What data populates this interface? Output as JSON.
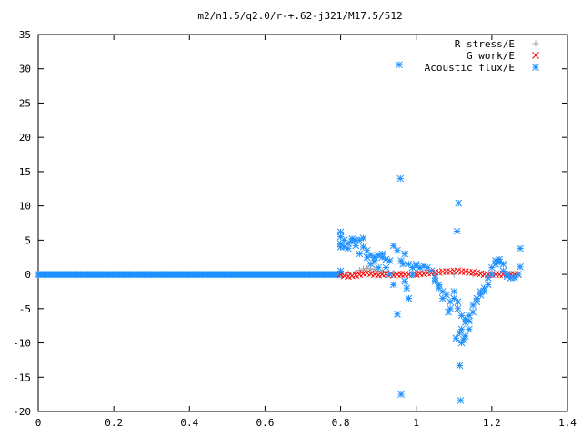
{
  "chart_data": {
    "type": "scatter",
    "title": "m2/n1.5/q2.0/r-+.62-j321/M17.5/512",
    "xlabel": "",
    "ylabel": "",
    "xlim": [
      0,
      1.4
    ],
    "ylim": [
      -20,
      35
    ],
    "x_ticks": [
      "0",
      "0.2",
      "0.4",
      "0.6",
      "0.8",
      "1",
      "1.2",
      "1.4"
    ],
    "y_ticks": [
      "35",
      "30",
      "25",
      "20",
      "15",
      "10",
      "5",
      "0",
      "-5",
      "-10",
      "-15",
      "-20"
    ],
    "grid": false,
    "legend_position": "top-right",
    "series": [
      {
        "name": "R stress/E",
        "marker": "plus",
        "color": "#a0a0a0",
        "points": [
          [
            0.8,
            0.0
          ],
          [
            0.82,
            0.2
          ],
          [
            0.84,
            0.4
          ],
          [
            0.85,
            0.6
          ],
          [
            0.86,
            0.8
          ],
          [
            0.87,
            0.9
          ],
          [
            0.88,
            0.8
          ],
          [
            0.89,
            0.7
          ],
          [
            0.9,
            0.5
          ],
          [
            0.91,
            0.4
          ],
          [
            0.92,
            0.3
          ],
          [
            0.94,
            0.2
          ],
          [
            0.96,
            0.1
          ],
          [
            1.0,
            0.0
          ],
          [
            1.05,
            0.0
          ],
          [
            1.1,
            0.0
          ],
          [
            1.15,
            0.0
          ],
          [
            1.2,
            0.0
          ],
          [
            1.25,
            0.0
          ]
        ]
      },
      {
        "name": "G work/E",
        "marker": "cross",
        "color": "#ff0000",
        "points": [
          [
            0.8,
            0.0
          ],
          [
            0.81,
            -0.2
          ],
          [
            0.82,
            -0.3
          ],
          [
            0.83,
            -0.2
          ],
          [
            0.84,
            -0.1
          ],
          [
            0.85,
            0.0
          ],
          [
            0.86,
            0.1
          ],
          [
            0.87,
            0.2
          ],
          [
            0.88,
            0.1
          ],
          [
            0.89,
            0.0
          ],
          [
            0.9,
            -0.1
          ],
          [
            0.91,
            0.0
          ],
          [
            0.92,
            0.1
          ],
          [
            0.93,
            0.0
          ],
          [
            0.94,
            -0.1
          ],
          [
            0.95,
            0.0
          ],
          [
            0.96,
            0.0
          ],
          [
            0.97,
            0.0
          ],
          [
            0.98,
            0.0
          ],
          [
            0.99,
            0.0
          ],
          [
            1.0,
            0.0
          ],
          [
            1.01,
            0.1
          ],
          [
            1.02,
            0.1
          ],
          [
            1.03,
            0.2
          ],
          [
            1.04,
            0.2
          ],
          [
            1.05,
            0.3
          ],
          [
            1.06,
            0.3
          ],
          [
            1.07,
            0.4
          ],
          [
            1.08,
            0.4
          ],
          [
            1.09,
            0.4
          ],
          [
            1.1,
            0.5
          ],
          [
            1.11,
            0.5
          ],
          [
            1.12,
            0.4
          ],
          [
            1.13,
            0.4
          ],
          [
            1.14,
            0.3
          ],
          [
            1.15,
            0.3
          ],
          [
            1.16,
            0.2
          ],
          [
            1.17,
            0.1
          ],
          [
            1.18,
            0.0
          ],
          [
            1.19,
            0.0
          ],
          [
            1.2,
            0.0
          ],
          [
            1.21,
            0.0
          ],
          [
            1.22,
            0.0
          ],
          [
            1.23,
            0.0
          ],
          [
            1.24,
            0.0
          ],
          [
            1.25,
            0.0
          ],
          [
            1.26,
            0.0
          ],
          [
            1.27,
            0.0
          ]
        ]
      },
      {
        "name": "Acoustic flux/E",
        "marker": "star",
        "color": "#1e90ff",
        "points": [
          [
            0.8,
            6.2
          ],
          [
            0.8,
            5.5
          ],
          [
            0.8,
            4.5
          ],
          [
            0.8,
            4.0
          ],
          [
            0.8,
            0.5
          ],
          [
            0.81,
            4.0
          ],
          [
            0.81,
            5.0
          ],
          [
            0.82,
            4.5
          ],
          [
            0.82,
            3.8
          ],
          [
            0.83,
            5.2
          ],
          [
            0.83,
            4.8
          ],
          [
            0.84,
            5.0
          ],
          [
            0.84,
            4.2
          ],
          [
            0.85,
            5.0
          ],
          [
            0.85,
            3.0
          ],
          [
            0.86,
            4.0
          ],
          [
            0.86,
            5.3
          ],
          [
            0.87,
            3.5
          ],
          [
            0.87,
            2.5
          ],
          [
            0.88,
            2.8
          ],
          [
            0.88,
            1.5
          ],
          [
            0.89,
            2.0
          ],
          [
            0.89,
            2.5
          ],
          [
            0.9,
            2.8
          ],
          [
            0.9,
            1.0
          ],
          [
            0.91,
            2.5
          ],
          [
            0.91,
            3.0
          ],
          [
            0.92,
            2.2
          ],
          [
            0.92,
            1.0
          ],
          [
            0.93,
            2.0
          ],
          [
            0.93,
            0.0
          ],
          [
            0.94,
            -1.5
          ],
          [
            0.94,
            4.2
          ],
          [
            0.95,
            3.5
          ],
          [
            0.95,
            -5.8
          ],
          [
            0.955,
            30.6
          ],
          [
            0.958,
            14.0
          ],
          [
            0.96,
            -17.5
          ],
          [
            0.96,
            2.0
          ],
          [
            0.965,
            1.5
          ],
          [
            0.97,
            3.0
          ],
          [
            0.97,
            -1.0
          ],
          [
            0.975,
            -2.0
          ],
          [
            0.98,
            1.5
          ],
          [
            0.98,
            -3.5
          ],
          [
            0.99,
            0.0
          ],
          [
            0.99,
            1.0
          ],
          [
            1.0,
            1.2
          ],
          [
            1.0,
            1.5
          ],
          [
            1.01,
            1.0
          ],
          [
            1.02,
            1.2
          ],
          [
            1.03,
            1.0
          ],
          [
            1.04,
            0.5
          ],
          [
            1.05,
            -0.5
          ],
          [
            1.06,
            -1.5
          ],
          [
            1.07,
            -2.5
          ],
          [
            1.08,
            -3.0
          ],
          [
            1.09,
            -4.0
          ],
          [
            1.1,
            -2.5
          ],
          [
            1.1,
            -3.5
          ],
          [
            1.11,
            -4.0
          ],
          [
            1.11,
            -5.0
          ],
          [
            1.105,
            -9.3
          ],
          [
            1.108,
            6.3
          ],
          [
            1.112,
            10.4
          ],
          [
            1.115,
            -13.3
          ],
          [
            1.117,
            -18.4
          ],
          [
            1.12,
            -8.0
          ],
          [
            1.12,
            -6.0
          ],
          [
            1.13,
            -6.5
          ],
          [
            1.13,
            -7.0
          ],
          [
            1.14,
            -6.8
          ],
          [
            1.14,
            -6.0
          ],
          [
            1.15,
            -5.5
          ],
          [
            1.15,
            -4.5
          ],
          [
            1.16,
            -4.0
          ],
          [
            1.16,
            -3.5
          ],
          [
            1.17,
            -3.0
          ],
          [
            1.17,
            -2.5
          ],
          [
            1.18,
            -2.0
          ],
          [
            1.18,
            -2.5
          ],
          [
            1.19,
            -1.5
          ],
          [
            1.19,
            -0.5
          ],
          [
            1.2,
            0.0
          ],
          [
            1.2,
            1.0
          ],
          [
            1.21,
            1.5
          ],
          [
            1.21,
            2.0
          ],
          [
            1.22,
            2.2
          ],
          [
            1.22,
            1.8
          ],
          [
            1.23,
            1.5
          ],
          [
            1.23,
            0.5
          ],
          [
            1.24,
            0.0
          ],
          [
            1.24,
            -0.3
          ],
          [
            1.25,
            -0.5
          ],
          [
            1.26,
            -0.5
          ],
          [
            1.27,
            0.0
          ],
          [
            1.275,
            1.1
          ],
          [
            1.275,
            3.8
          ],
          [
            1.12,
            -10.0
          ],
          [
            1.115,
            -8.5
          ],
          [
            1.125,
            -9.5
          ],
          [
            1.13,
            -9.0
          ],
          [
            1.14,
            -8.0
          ],
          [
            1.09,
            -5.0
          ],
          [
            1.085,
            -5.5
          ],
          [
            1.07,
            -3.5
          ],
          [
            1.06,
            -2.0
          ],
          [
            1.05,
            -1.0
          ]
        ]
      }
    ]
  },
  "acoustic_zero_segment": {
    "x_range": [
      0,
      0.8
    ],
    "y": 0,
    "note": ""
  }
}
